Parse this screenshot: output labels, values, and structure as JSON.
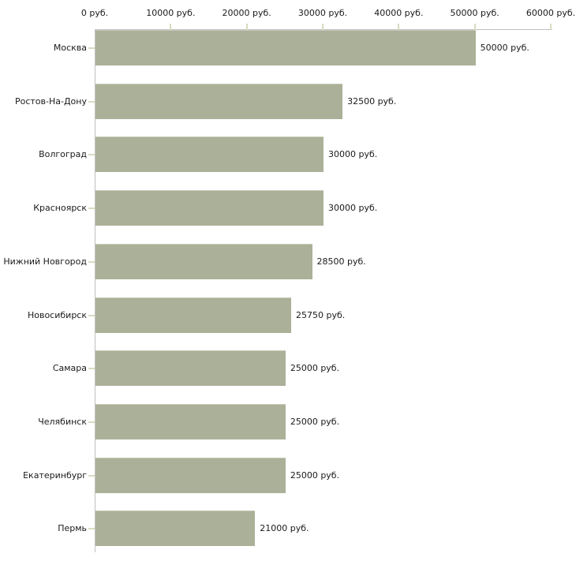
{
  "chart_data": {
    "type": "bar",
    "orientation": "horizontal",
    "categories": [
      "Москва",
      "Ростов-На-Дону",
      "Волгоград",
      "Красноярск",
      "Нижний Новгород",
      "Новосибирск",
      "Самара",
      "Челябинск",
      "Екатеринбург",
      "Пермь"
    ],
    "values": [
      50000,
      32500,
      30000,
      30000,
      28500,
      25750,
      25000,
      25000,
      25000,
      21000
    ],
    "value_labels": [
      "50000 руб.",
      "32500 руб.",
      "30000 руб.",
      "30000 руб.",
      "28500 руб.",
      "25750 руб.",
      "25000 руб.",
      "25000 руб.",
      "25000 руб.",
      "21000 руб."
    ],
    "x_tick_values": [
      0,
      10000,
      20000,
      30000,
      40000,
      50000,
      60000
    ],
    "x_tick_labels": [
      "0 руб.",
      "10000 руб.",
      "20000 руб.",
      "30000 руб.",
      "40000 руб.",
      "50000 руб.",
      "60000 руб."
    ],
    "xlim": [
      0,
      60000
    ],
    "grid": false,
    "legend": "none",
    "colors": {
      "bar_fill": "#abb198",
      "bar_top_edge": "#c6cab6",
      "axis_line": "#c0c0c0",
      "tick_mark": "#d9dcc0",
      "text": "#1a1a1a",
      "background": "#ffffff"
    }
  }
}
